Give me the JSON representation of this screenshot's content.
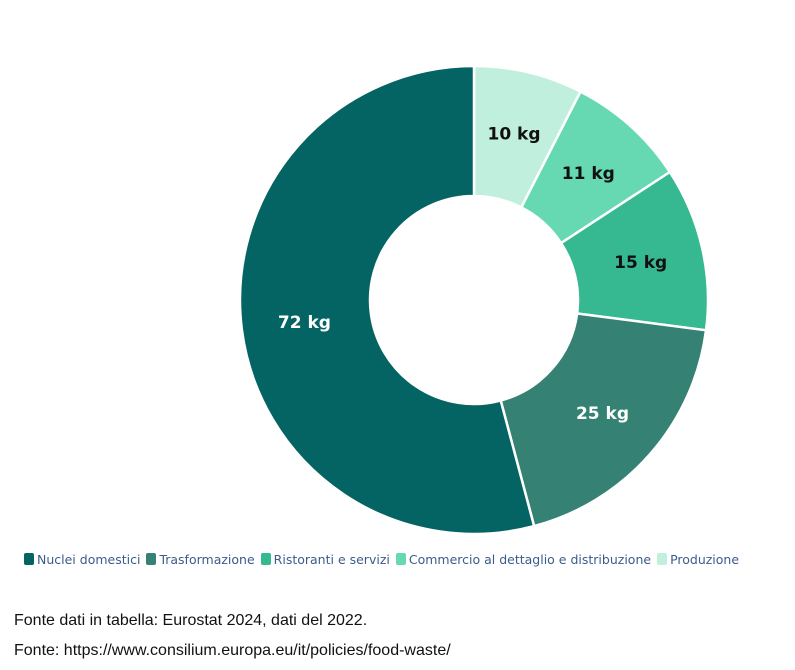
{
  "chart_data": {
    "type": "pie",
    "categories": [
      "Nuclei domestici",
      "Trasformazione",
      "Ristoranti e servizi",
      "Commercio al dettaglio e distribuzione",
      "Produzione"
    ],
    "values": [
      72,
      25,
      15,
      11,
      10
    ],
    "unit": "kg",
    "labels": [
      "72 kg",
      "25 kg",
      "15 kg",
      "11 kg",
      "10 kg"
    ],
    "colors": [
      "#046464",
      "#358274",
      "#36b890",
      "#66d9b2",
      "#c1efde"
    ],
    "label_colors": [
      "#ffffff",
      "#ffffff",
      "#111111",
      "#111111",
      "#111111"
    ],
    "legend_position": "bottom",
    "donut": true
  },
  "legend": {
    "items": [
      "Nuclei domestici",
      "Trasformazione",
      "Ristoranti e servizi",
      "Commercio al dettaglio e distribuzione",
      "Produzione"
    ]
  },
  "footer": {
    "source_1": "Fonte dati in tabella: Eurostat 2024, dati del 2022.",
    "source_2": "Fonte: https://www.consilium.europa.eu/it/policies/food-waste/"
  }
}
